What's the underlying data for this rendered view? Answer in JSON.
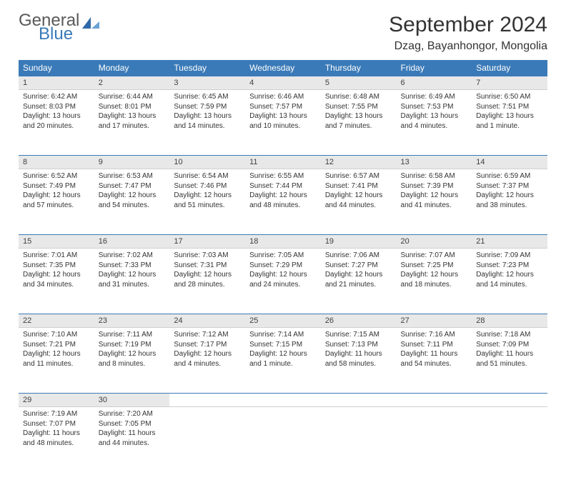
{
  "branding": {
    "general": "General",
    "blue": "Blue"
  },
  "header": {
    "title": "September 2024",
    "location": "Dzag, Bayanhongor, Mongolia"
  },
  "colors": {
    "header_bg": "#3a7ab8",
    "header_text": "#ffffff",
    "daynum_bg": "#e8e8e8",
    "rule": "#3a7ab8",
    "text": "#333333",
    "logo_gray": "#595959",
    "logo_blue": "#3a7ab8"
  },
  "weekdays": [
    "Sunday",
    "Monday",
    "Tuesday",
    "Wednesday",
    "Thursday",
    "Friday",
    "Saturday"
  ],
  "days": [
    {
      "n": "1",
      "sunrise": "6:42 AM",
      "sunset": "8:03 PM",
      "daylight": "13 hours and 20 minutes."
    },
    {
      "n": "2",
      "sunrise": "6:44 AM",
      "sunset": "8:01 PM",
      "daylight": "13 hours and 17 minutes."
    },
    {
      "n": "3",
      "sunrise": "6:45 AM",
      "sunset": "7:59 PM",
      "daylight": "13 hours and 14 minutes."
    },
    {
      "n": "4",
      "sunrise": "6:46 AM",
      "sunset": "7:57 PM",
      "daylight": "13 hours and 10 minutes."
    },
    {
      "n": "5",
      "sunrise": "6:48 AM",
      "sunset": "7:55 PM",
      "daylight": "13 hours and 7 minutes."
    },
    {
      "n": "6",
      "sunrise": "6:49 AM",
      "sunset": "7:53 PM",
      "daylight": "13 hours and 4 minutes."
    },
    {
      "n": "7",
      "sunrise": "6:50 AM",
      "sunset": "7:51 PM",
      "daylight": "13 hours and 1 minute."
    },
    {
      "n": "8",
      "sunrise": "6:52 AM",
      "sunset": "7:49 PM",
      "daylight": "12 hours and 57 minutes."
    },
    {
      "n": "9",
      "sunrise": "6:53 AM",
      "sunset": "7:47 PM",
      "daylight": "12 hours and 54 minutes."
    },
    {
      "n": "10",
      "sunrise": "6:54 AM",
      "sunset": "7:46 PM",
      "daylight": "12 hours and 51 minutes."
    },
    {
      "n": "11",
      "sunrise": "6:55 AM",
      "sunset": "7:44 PM",
      "daylight": "12 hours and 48 minutes."
    },
    {
      "n": "12",
      "sunrise": "6:57 AM",
      "sunset": "7:41 PM",
      "daylight": "12 hours and 44 minutes."
    },
    {
      "n": "13",
      "sunrise": "6:58 AM",
      "sunset": "7:39 PM",
      "daylight": "12 hours and 41 minutes."
    },
    {
      "n": "14",
      "sunrise": "6:59 AM",
      "sunset": "7:37 PM",
      "daylight": "12 hours and 38 minutes."
    },
    {
      "n": "15",
      "sunrise": "7:01 AM",
      "sunset": "7:35 PM",
      "daylight": "12 hours and 34 minutes."
    },
    {
      "n": "16",
      "sunrise": "7:02 AM",
      "sunset": "7:33 PM",
      "daylight": "12 hours and 31 minutes."
    },
    {
      "n": "17",
      "sunrise": "7:03 AM",
      "sunset": "7:31 PM",
      "daylight": "12 hours and 28 minutes."
    },
    {
      "n": "18",
      "sunrise": "7:05 AM",
      "sunset": "7:29 PM",
      "daylight": "12 hours and 24 minutes."
    },
    {
      "n": "19",
      "sunrise": "7:06 AM",
      "sunset": "7:27 PM",
      "daylight": "12 hours and 21 minutes."
    },
    {
      "n": "20",
      "sunrise": "7:07 AM",
      "sunset": "7:25 PM",
      "daylight": "12 hours and 18 minutes."
    },
    {
      "n": "21",
      "sunrise": "7:09 AM",
      "sunset": "7:23 PM",
      "daylight": "12 hours and 14 minutes."
    },
    {
      "n": "22",
      "sunrise": "7:10 AM",
      "sunset": "7:21 PM",
      "daylight": "12 hours and 11 minutes."
    },
    {
      "n": "23",
      "sunrise": "7:11 AM",
      "sunset": "7:19 PM",
      "daylight": "12 hours and 8 minutes."
    },
    {
      "n": "24",
      "sunrise": "7:12 AM",
      "sunset": "7:17 PM",
      "daylight": "12 hours and 4 minutes."
    },
    {
      "n": "25",
      "sunrise": "7:14 AM",
      "sunset": "7:15 PM",
      "daylight": "12 hours and 1 minute."
    },
    {
      "n": "26",
      "sunrise": "7:15 AM",
      "sunset": "7:13 PM",
      "daylight": "11 hours and 58 minutes."
    },
    {
      "n": "27",
      "sunrise": "7:16 AM",
      "sunset": "7:11 PM",
      "daylight": "11 hours and 54 minutes."
    },
    {
      "n": "28",
      "sunrise": "7:18 AM",
      "sunset": "7:09 PM",
      "daylight": "11 hours and 51 minutes."
    },
    {
      "n": "29",
      "sunrise": "7:19 AM",
      "sunset": "7:07 PM",
      "daylight": "11 hours and 48 minutes."
    },
    {
      "n": "30",
      "sunrise": "7:20 AM",
      "sunset": "7:05 PM",
      "daylight": "11 hours and 44 minutes."
    }
  ],
  "labels": {
    "sunrise": "Sunrise: ",
    "sunset": "Sunset: ",
    "daylight": "Daylight: "
  }
}
